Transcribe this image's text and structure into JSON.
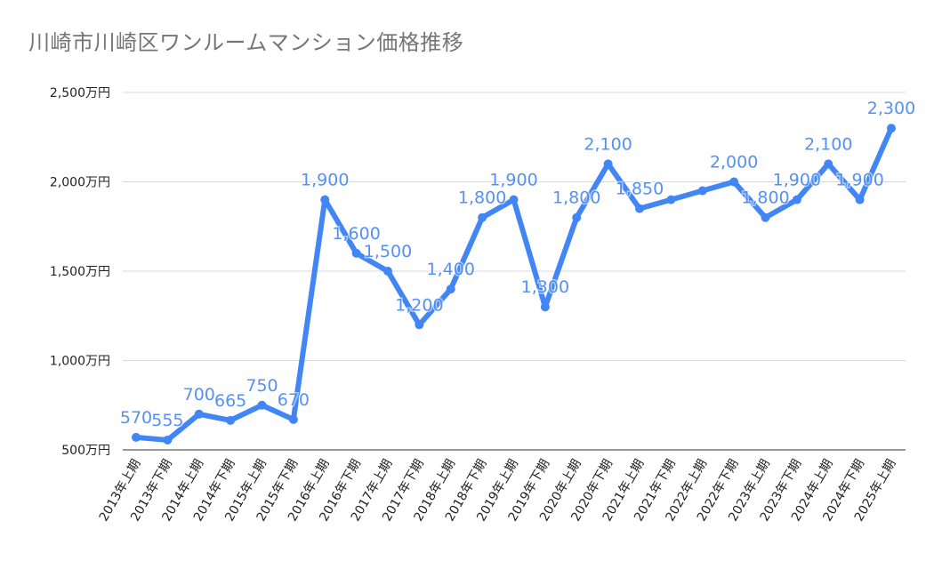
{
  "chart_data": {
    "type": "line",
    "title": "川崎市川崎区ワンルームマンション価格推移",
    "ylim": [
      500,
      2500
    ],
    "yticks": [
      "500万円",
      "1,000万円",
      "1,500万円",
      "2,000万円",
      "2,500万円"
    ],
    "ytick_values": [
      500,
      1000,
      1500,
      2000,
      2500
    ],
    "grid": true,
    "legend": "none",
    "color": "#4285f4",
    "categories": [
      "2013年上期",
      "2013年下期",
      "2014年上期",
      "2014年下期",
      "2015年上期",
      "2015年下期",
      "2016年上期",
      "2016年下期",
      "2017年上期",
      "2017年下期",
      "2018年上期",
      "2018年下期",
      "2019年上期",
      "2019年下期",
      "2020年上期",
      "2020年下期",
      "2021年上期",
      "2021年下期",
      "2022年上期",
      "2022年下期",
      "2023年上期",
      "2023年下期",
      "2024年上期",
      "2024年下期",
      "2025年上期"
    ],
    "values": [
      570,
      555,
      700,
      665,
      750,
      670,
      1900,
      1600,
      1500,
      1200,
      1400,
      1800,
      1900,
      1300,
      1800,
      2100,
      1850,
      1900,
      1950,
      2000,
      1800,
      1900,
      2100,
      1900,
      2300
    ],
    "data_labels": [
      "570",
      "555",
      "700",
      "665",
      "750",
      "670",
      "1,900",
      "1,600",
      "1,500",
      "1,200",
      "1,400",
      "1,800",
      "1,900",
      "1,300",
      "1,800",
      "2,100",
      "1,850",
      "",
      "",
      "2,000",
      "1,800",
      "1,900",
      "2,100",
      "1,900",
      "2,300"
    ]
  }
}
